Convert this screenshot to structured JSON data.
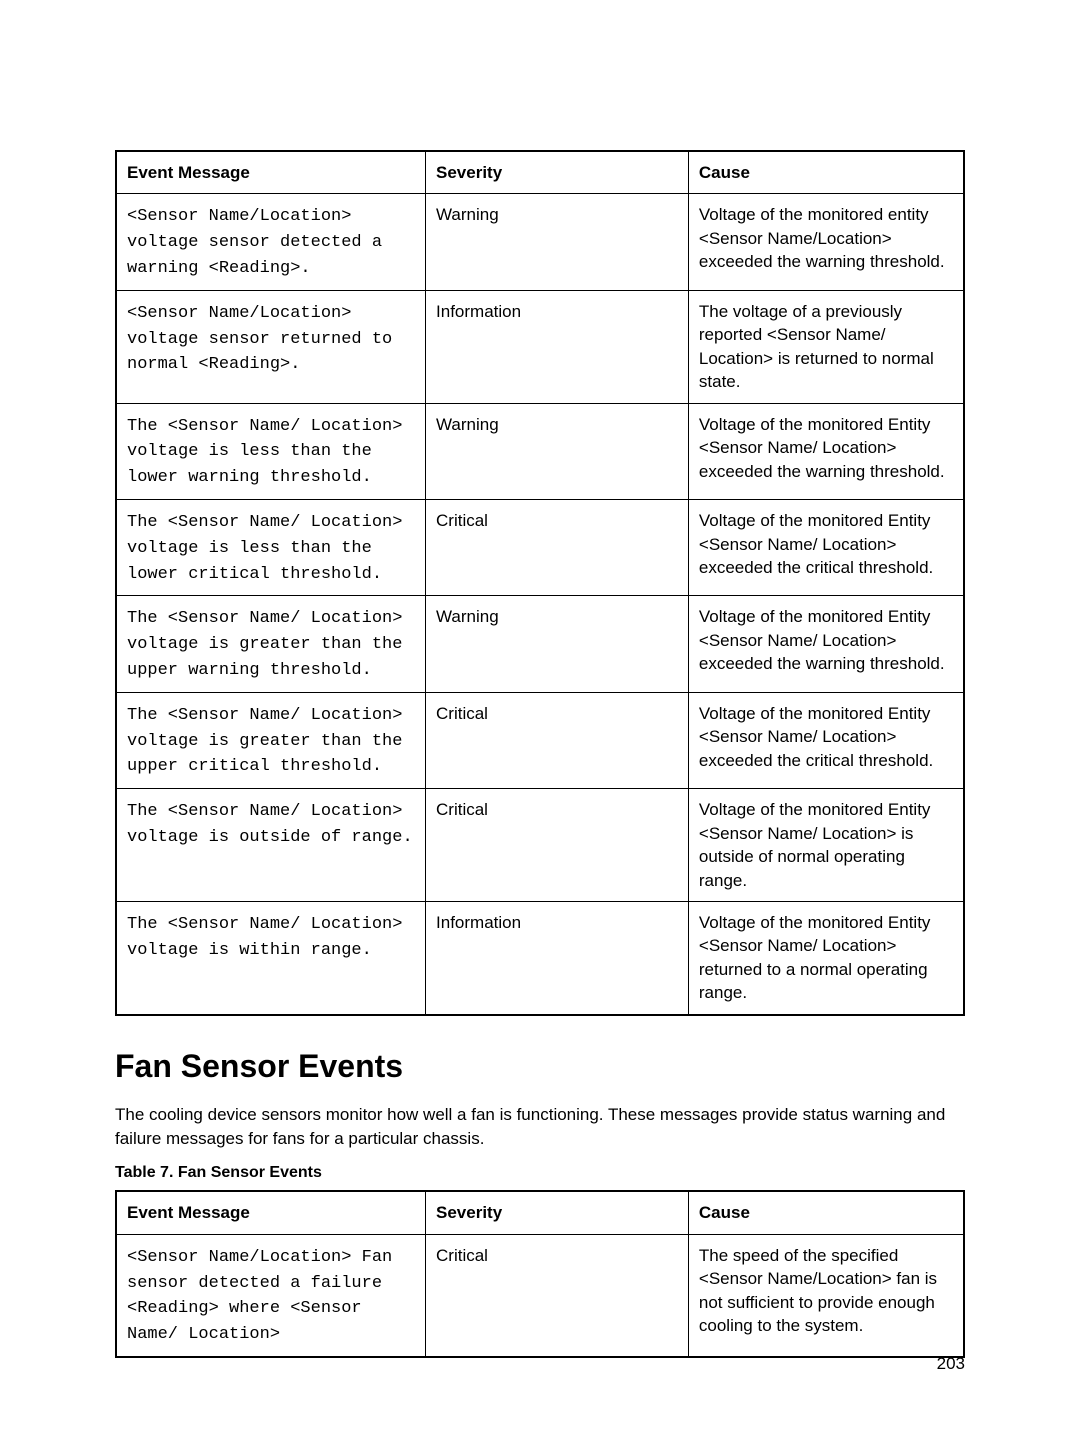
{
  "table1": {
    "headers": [
      "Event Message",
      "Severity",
      "Cause"
    ],
    "rows": [
      {
        "msg": "<Sensor Name/Location> voltage sensor detected a warning <Reading>.",
        "sev": "Warning",
        "cause": "Voltage of the monitored entity <Sensor Name/Location> exceeded the warning threshold."
      },
      {
        "msg": "<Sensor Name/Location> voltage sensor returned to normal <Reading>.",
        "sev": "Information",
        "cause": "The voltage of a previously reported <Sensor Name/ Location> is returned to normal state."
      },
      {
        "msg": "The <Sensor Name/ Location> voltage is less than the lower warning threshold.",
        "sev": "Warning",
        "cause": "Voltage of the monitored Entity <Sensor Name/ Location> exceeded the warning threshold."
      },
      {
        "msg": "The <Sensor Name/ Location> voltage is less than the lower critical threshold.",
        "sev": "Critical",
        "cause": "Voltage of the monitored Entity <Sensor Name/ Location> exceeded the critical threshold."
      },
      {
        "msg": "The <Sensor Name/ Location> voltage is greater than the upper warning threshold.",
        "sev": "Warning",
        "cause": "Voltage of the monitored Entity <Sensor Name/ Location> exceeded the warning threshold."
      },
      {
        "msg": "The <Sensor Name/ Location> voltage is greater than the upper critical threshold.",
        "sev": "Critical",
        "cause": "Voltage of the monitored Entity <Sensor Name/ Location> exceeded the critical threshold."
      },
      {
        "msg": "The <Sensor Name/ Location> voltage is outside of range.",
        "sev": "Critical",
        "cause": "Voltage of the monitored Entity <Sensor Name/ Location> is outside of normal operating range."
      },
      {
        "msg": "The <Sensor Name/ Location> voltage is within range.",
        "sev": "Information",
        "cause": "Voltage of the monitored Entity <Sensor Name/ Location> returned to a normal operating range."
      }
    ]
  },
  "section_heading": "Fan Sensor Events",
  "section_body": "The cooling device sensors monitor how well a fan is functioning. These messages provide status warning and failure messages for fans for a particular chassis.",
  "table2_caption": "Table 7. Fan Sensor Events",
  "table2": {
    "headers": [
      "Event Message",
      "Severity",
      "Cause"
    ],
    "rows": [
      {
        "msg": "<Sensor Name/Location> Fan sensor detected a failure <Reading> where <Sensor Name/ Location>",
        "sev": "Critical",
        "cause": "The speed of the specified <Sensor Name/Location> fan is not sufficient to provide enough cooling to the system."
      }
    ]
  },
  "pagenum": "203"
}
